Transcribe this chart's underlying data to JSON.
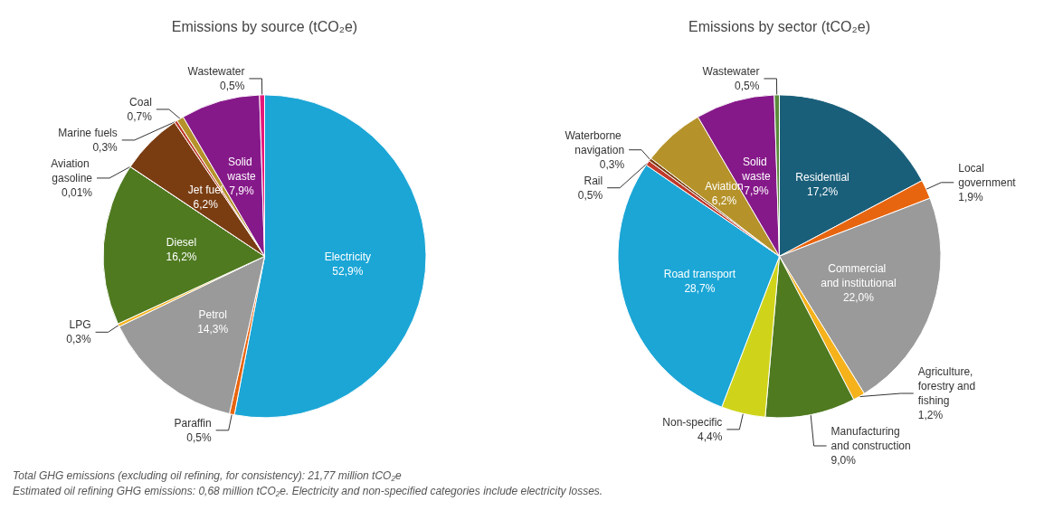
{
  "chart_data": [
    {
      "type": "pie",
      "title": "Emissions by source (tCO₂e)",
      "categories": [
        "Electricity",
        "Paraffin",
        "Petrol",
        "LPG",
        "Diesel",
        "Aviation gasoline",
        "Jet fuel",
        "Marine fuels",
        "Coal",
        "Solid waste",
        "Wastewater"
      ],
      "values": [
        52.9,
        0.5,
        14.3,
        0.3,
        16.2,
        0.01,
        6.2,
        0.3,
        0.7,
        7.9,
        0.5
      ],
      "value_labels": [
        "52,9%",
        "0,5%",
        "14,3%",
        "0,3%",
        "16,2%",
        "0,01%",
        "6,2%",
        "0,3%",
        "0,7%",
        "7,9%",
        "0,5%"
      ],
      "colors": [
        "#1ba6d6",
        "#e8650f",
        "#9a9a9a",
        "#f5b21b",
        "#4f7a20",
        "#cfd41a",
        "#7a3d12",
        "#c0392b",
        "#b5932a",
        "#86198a",
        "#e5197a"
      ],
      "legend": false,
      "annotations": [
        "Total GHG emissions (excluding oil refining, for consistency): 21,77 million tCO₂e",
        "Estimated oil refining GHG emissions: 0,68 million tCO₂e. Electricity and non-specified categories include electricity losses."
      ]
    },
    {
      "type": "pie",
      "title": "Emissions by sector (tCO₂e)",
      "categories": [
        "Residential",
        "Local government",
        "Commercial and institutional",
        "Agriculture, forestry and fishing",
        "Manufacturing and construction",
        "Non-specific",
        "Road transport",
        "Rail",
        "Waterborne navigation",
        "Aviation",
        "Solid waste",
        "Wastewater"
      ],
      "values": [
        17.2,
        1.9,
        22.0,
        1.2,
        9.0,
        4.4,
        28.7,
        0.5,
        0.3,
        6.2,
        7.9,
        0.5
      ],
      "value_labels": [
        "17,2%",
        "1,9%",
        "22,0%",
        "1,2%",
        "9,0%",
        "4,4%",
        "28,7%",
        "0,5%",
        "0,3%",
        "6,2%",
        "7,9%",
        "0,5%"
      ],
      "colors": [
        "#1a5f7a",
        "#e8650f",
        "#9a9a9a",
        "#f5b21b",
        "#4f7a20",
        "#cfd41a",
        "#1ba6d6",
        "#c0392b",
        "#7a3d12",
        "#b5932a",
        "#86198a",
        "#5a8a3a"
      ],
      "legend": false
    }
  ]
}
